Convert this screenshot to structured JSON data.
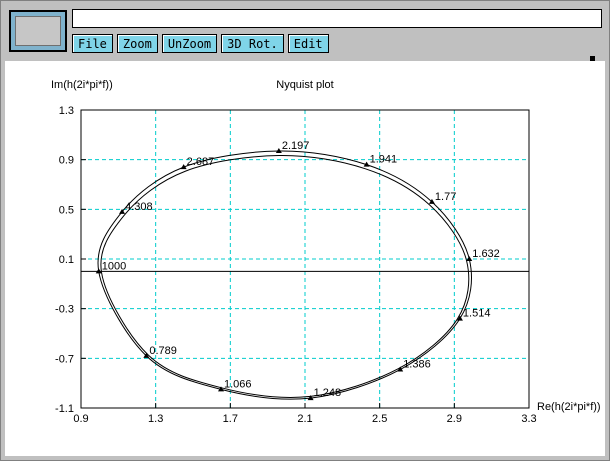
{
  "window": {
    "title_field": "",
    "toolbar": {
      "file_label": "File",
      "zoom_label": "Zoom",
      "unzoom_label": "UnZoom",
      "rot3d_label": "3D Rot.",
      "edit_label": "Edit"
    }
  },
  "chart_data": {
    "type": "line",
    "title": "Nyquist plot",
    "xlabel": "Re(h(2i*pi*f))",
    "ylabel": "Im(h(2i*pi*f))",
    "xlim": [
      0.9,
      3.3
    ],
    "ylim": [
      -1.1,
      1.3
    ],
    "xticks": [
      "0.9",
      "1.3",
      "1.7",
      "2.1",
      "2.5",
      "2.9",
      "3.3"
    ],
    "yticks": [
      "1.3",
      "0.9",
      "0.5",
      "0.1",
      "-0.3",
      "-0.7",
      "-1.1"
    ],
    "grid": true,
    "grid_color": "#00cccc",
    "curve_color": "#000000",
    "zero_line_y": 0,
    "series": [
      {
        "points": [
          {
            "x": 0.995,
            "y": 0.0
          },
          {
            "x": 1.12,
            "y": 0.48
          },
          {
            "x": 1.45,
            "y": 0.84
          },
          {
            "x": 1.96,
            "y": 0.97
          },
          {
            "x": 2.43,
            "y": 0.86
          },
          {
            "x": 2.78,
            "y": 0.56
          },
          {
            "x": 2.98,
            "y": 0.1
          },
          {
            "x": 2.93,
            "y": -0.38
          },
          {
            "x": 2.61,
            "y": -0.79
          },
          {
            "x": 2.13,
            "y": -1.02
          },
          {
            "x": 1.65,
            "y": -0.95
          },
          {
            "x": 1.25,
            "y": -0.68
          },
          {
            "x": 0.995,
            "y": 0.0
          }
        ]
      }
    ],
    "frequency_labels": [
      {
        "text": "1000",
        "x": 0.995,
        "y": 0.0
      },
      {
        "text": "4.308",
        "x": 1.12,
        "y": 0.48
      },
      {
        "text": "2.687",
        "x": 1.45,
        "y": 0.84
      },
      {
        "text": "2.197",
        "x": 1.96,
        "y": 0.97
      },
      {
        "text": "1.941",
        "x": 2.43,
        "y": 0.86
      },
      {
        "text": "1.77",
        "x": 2.78,
        "y": 0.56
      },
      {
        "text": "1.632",
        "x": 2.98,
        "y": 0.1
      },
      {
        "text": "1.514",
        "x": 2.93,
        "y": -0.38
      },
      {
        "text": "1.386",
        "x": 2.61,
        "y": -0.79
      },
      {
        "text": "1.248",
        "x": 2.13,
        "y": -1.02
      },
      {
        "text": "1.066",
        "x": 1.65,
        "y": -0.95
      },
      {
        "text": "0.789",
        "x": 1.25,
        "y": -0.68
      }
    ]
  }
}
